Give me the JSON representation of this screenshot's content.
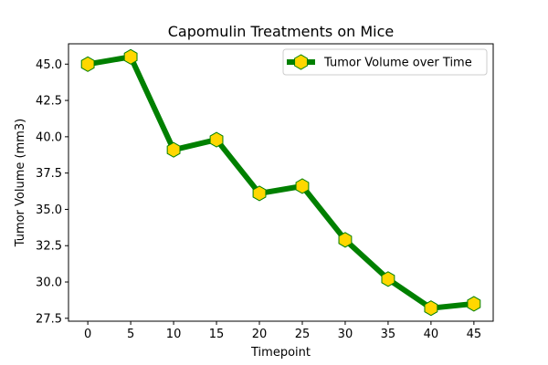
{
  "chart_data": {
    "type": "line",
    "title": "Capomulin Treatments on Mice",
    "xlabel": "Timepoint",
    "ylabel": "Tumor Volume (mm3)",
    "x": [
      0,
      5,
      10,
      15,
      20,
      25,
      30,
      35,
      40,
      45
    ],
    "x_ticks": [
      0,
      5,
      10,
      15,
      20,
      25,
      30,
      35,
      40,
      45
    ],
    "y_ticks": [
      27.5,
      30.0,
      32.5,
      35.0,
      37.5,
      40.0,
      42.5,
      45.0
    ],
    "y_tick_labels": [
      "27.5",
      "30.0",
      "32.5",
      "35.0",
      "37.5",
      "40.0",
      "42.5",
      "45.0"
    ],
    "xlim": [
      -2.25,
      47.25
    ],
    "ylim": [
      27.3,
      46.4
    ],
    "grid": false,
    "legend_position": "top-right",
    "series": [
      {
        "name": "Tumor Volume over Time",
        "values": [
          45.0,
          45.5,
          39.1,
          39.8,
          36.1,
          36.6,
          32.9,
          30.2,
          28.2,
          28.5
        ],
        "line_color": "#008000",
        "marker": "hexagon",
        "marker_face_color": "#FFD700",
        "marker_edge_color": "#008000"
      }
    ]
  }
}
